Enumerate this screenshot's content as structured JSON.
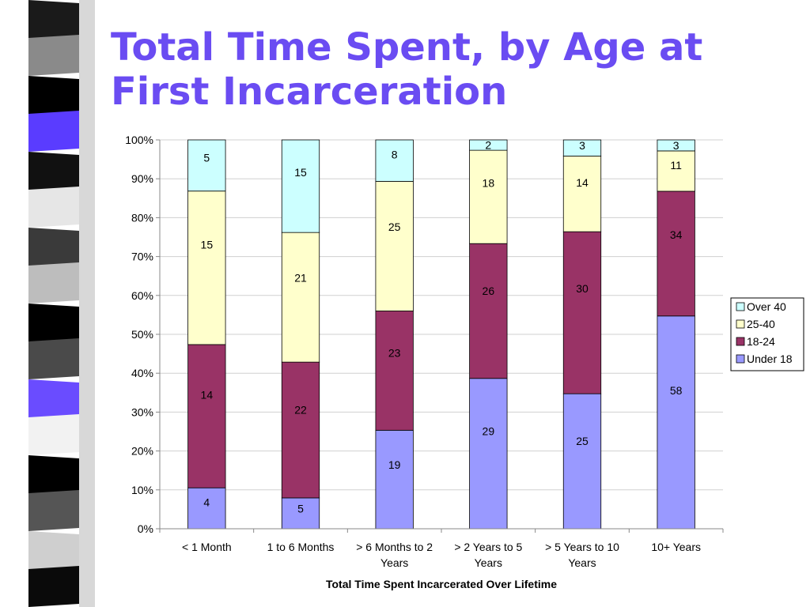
{
  "slide": {
    "title_line1": "Total Time Spent, by Age at",
    "title_line2": "First Incarceration",
    "title_color": "#6a4cf2"
  },
  "chart_data": {
    "type": "bar",
    "stacked": "percent",
    "title": "",
    "xlabel": "Total Time Spent Incarcerated Over Lifetime",
    "ylabel": "",
    "ylim": [
      0,
      100
    ],
    "y_ticks": [
      "0%",
      "10%",
      "20%",
      "30%",
      "40%",
      "50%",
      "60%",
      "70%",
      "80%",
      "90%",
      "100%"
    ],
    "grid": true,
    "legend_position": "right",
    "categories": [
      [
        "< 1 Month"
      ],
      [
        "1 to 6 Months"
      ],
      [
        "> 6 Months to 2",
        "Years"
      ],
      [
        "> 2 Years to 5",
        "Years"
      ],
      [
        "> 5 Years to 10",
        "Years"
      ],
      [
        "10+ Years"
      ]
    ],
    "series": [
      {
        "name": "Under 18",
        "color": "#9999ff",
        "values": [
          4,
          5,
          19,
          29,
          25,
          58
        ]
      },
      {
        "name": "18-24",
        "color": "#993366",
        "values": [
          14,
          22,
          23,
          26,
          30,
          34
        ]
      },
      {
        "name": "25-40",
        "color": "#ffffcc",
        "values": [
          15,
          21,
          25,
          18,
          14,
          11
        ]
      },
      {
        "name": "Over 40",
        "color": "#ccffff",
        "values": [
          5,
          15,
          8,
          2,
          3,
          3
        ]
      }
    ]
  }
}
